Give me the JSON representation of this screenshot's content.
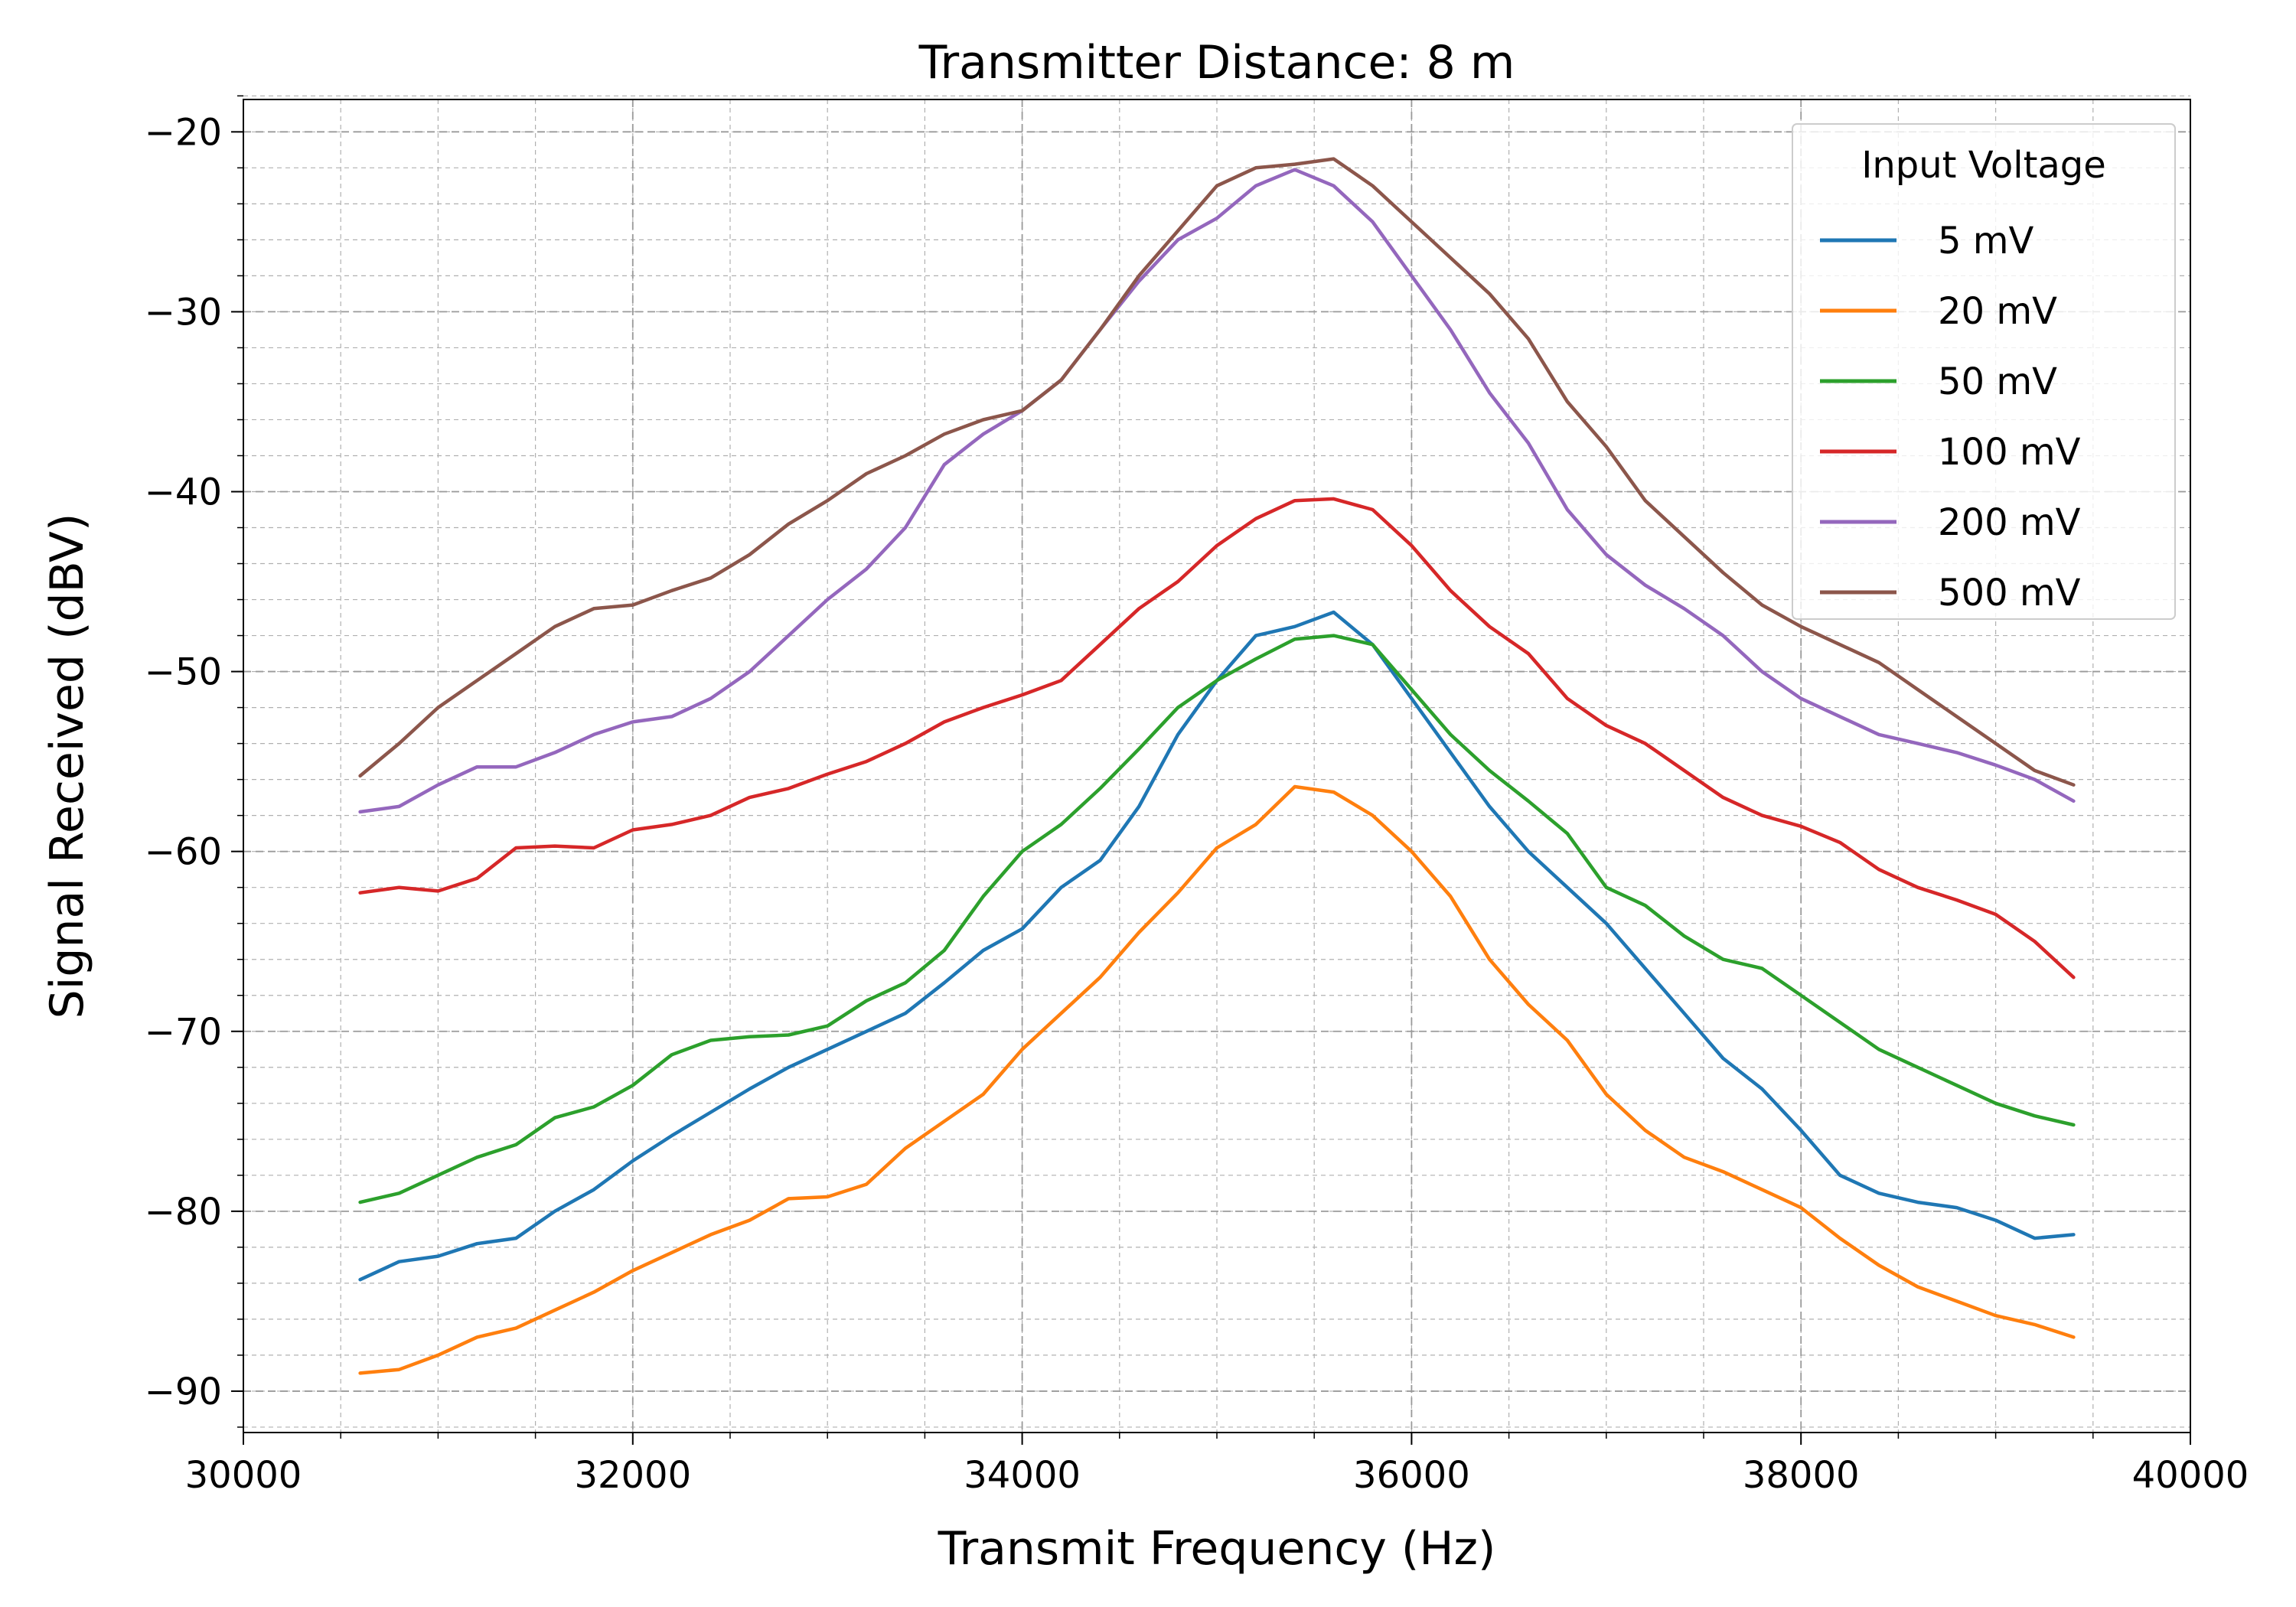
{
  "chart_data": {
    "type": "line",
    "title": "Transmitter Distance: 8 m",
    "xlabel": "Transmit Frequency (Hz)",
    "ylabel": "Signal Received (dBV)",
    "xlim": [
      30000,
      40000
    ],
    "ylim": [
      -92.3,
      -18.2
    ],
    "xticks": [
      30000,
      32000,
      34000,
      36000,
      38000,
      40000
    ],
    "xtick_labels": [
      "30000",
      "32000",
      "34000",
      "36000",
      "38000",
      "40000"
    ],
    "yticks": [
      -20,
      -30,
      -40,
      -50,
      -60,
      -70,
      -80,
      -90
    ],
    "ytick_labels": [
      "−20",
      "−30",
      "−40",
      "−50",
      "−60",
      "−70",
      "−80",
      "−90"
    ],
    "grid": true,
    "legend": {
      "title": "Input Voltage",
      "placement": "upper right"
    },
    "series": [
      {
        "name": "5 mV",
        "color": "#1f77b4",
        "x": [
          30600,
          30800,
          31000,
          31200,
          31400,
          31600,
          31800,
          32000,
          32200,
          32400,
          32600,
          32800,
          33000,
          33200,
          33400,
          33600,
          33800,
          34000,
          34200,
          34400,
          34600,
          34800,
          35000,
          35200,
          35400,
          35600,
          35800,
          36000,
          36200,
          36400,
          36600,
          36800,
          37000,
          37200,
          37400,
          37600,
          37800,
          38000,
          38200,
          38400,
          38600,
          38800,
          39000,
          39200,
          39400
        ],
        "y": [
          -83.8,
          -82.8,
          -82.5,
          -81.8,
          -81.5,
          -80,
          -78.8,
          -77.2,
          -75.8,
          -74.5,
          -73.2,
          -72,
          -71,
          -70,
          -69,
          -67.3,
          -65.5,
          -64.3,
          -62,
          -60.5,
          -57.5,
          -53.5,
          -50.5,
          -48,
          -47.5,
          -46.7,
          -48.5,
          -51.5,
          -54.5,
          -57.5,
          -60,
          -62,
          -64,
          -66.5,
          -69,
          -71.5,
          -73.2,
          -75.5,
          -78,
          -79,
          -79.5,
          -79.8,
          -80.5,
          -81.5,
          -81.3
        ]
      },
      {
        "name": "20 mV",
        "color": "#ff7f0e",
        "x": [
          30600,
          30800,
          31000,
          31200,
          31400,
          31600,
          31800,
          32000,
          32200,
          32400,
          32600,
          32800,
          33000,
          33200,
          33400,
          33600,
          33800,
          34000,
          34200,
          34400,
          34600,
          34800,
          35000,
          35200,
          35400,
          35600,
          35800,
          36000,
          36200,
          36400,
          36600,
          36800,
          37000,
          37200,
          37400,
          37600,
          37800,
          38000,
          38200,
          38400,
          38600,
          38800,
          39000,
          39200,
          39400
        ],
        "y": [
          -89,
          -88.8,
          -88,
          -87,
          -86.5,
          -85.5,
          -84.5,
          -83.3,
          -82.3,
          -81.3,
          -80.5,
          -79.3,
          -79.2,
          -78.5,
          -76.5,
          -75,
          -73.5,
          -71,
          -69,
          -67,
          -64.5,
          -62.3,
          -59.8,
          -58.5,
          -56.4,
          -56.7,
          -58,
          -60,
          -62.5,
          -66,
          -68.5,
          -70.5,
          -73.5,
          -75.5,
          -77,
          -77.8,
          -78.8,
          -79.8,
          -81.5,
          -83,
          -84.2,
          -85,
          -85.8,
          -86.3,
          -87
        ]
      },
      {
        "name": "50 mV",
        "color": "#2ca02c",
        "x": [
          30600,
          30800,
          31000,
          31200,
          31400,
          31600,
          31800,
          32000,
          32200,
          32400,
          32600,
          32800,
          33000,
          33200,
          33400,
          33600,
          33800,
          34000,
          34200,
          34400,
          34600,
          34800,
          35000,
          35200,
          35400,
          35600,
          35800,
          36000,
          36200,
          36400,
          36600,
          36800,
          37000,
          37200,
          37400,
          37600,
          37800,
          38000,
          38200,
          38400,
          38600,
          38800,
          39000,
          39200,
          39400
        ],
        "y": [
          -79.5,
          -79,
          -78,
          -77,
          -76.3,
          -74.8,
          -74.2,
          -73,
          -71.3,
          -70.5,
          -70.3,
          -70.2,
          -69.7,
          -68.3,
          -67.3,
          -65.5,
          -62.5,
          -60,
          -58.5,
          -56.5,
          -54.3,
          -52,
          -50.5,
          -49.3,
          -48.2,
          -48,
          -48.5,
          -51,
          -53.5,
          -55.5,
          -57.2,
          -59,
          -62,
          -63,
          -64.7,
          -66,
          -66.5,
          -68,
          -69.5,
          -71,
          -72,
          -73,
          -74,
          -74.7,
          -75.2
        ]
      },
      {
        "name": "100 mV",
        "color": "#d62728",
        "x": [
          30600,
          30800,
          31000,
          31200,
          31400,
          31600,
          31800,
          32000,
          32200,
          32400,
          32600,
          32800,
          33000,
          33200,
          33400,
          33600,
          33800,
          34000,
          34200,
          34400,
          34600,
          34800,
          35000,
          35200,
          35400,
          35600,
          35800,
          36000,
          36200,
          36400,
          36600,
          36800,
          37000,
          37200,
          37400,
          37600,
          37800,
          38000,
          38200,
          38400,
          38600,
          38800,
          39000,
          39200,
          39400
        ],
        "y": [
          -62.3,
          -62,
          -62.2,
          -61.5,
          -59.8,
          -59.7,
          -59.8,
          -58.8,
          -58.5,
          -58,
          -57,
          -56.5,
          -55.7,
          -55,
          -54,
          -52.8,
          -52,
          -51.3,
          -50.5,
          -48.5,
          -46.5,
          -45,
          -43,
          -41.5,
          -40.5,
          -40.4,
          -41,
          -43,
          -45.5,
          -47.5,
          -49,
          -51.5,
          -53,
          -54,
          -55.5,
          -57,
          -58,
          -58.6,
          -59.5,
          -61,
          -62,
          -62.7,
          -63.5,
          -65,
          -67
        ]
      },
      {
        "name": "200 mV",
        "color": "#9467bd",
        "x": [
          30600,
          30800,
          31000,
          31200,
          31400,
          31600,
          31800,
          32000,
          32200,
          32400,
          32600,
          32800,
          33000,
          33200,
          33400,
          33600,
          33800,
          34000,
          34200,
          34400,
          34600,
          34800,
          35000,
          35200,
          35400,
          35600,
          35800,
          36000,
          36200,
          36400,
          36600,
          36800,
          37000,
          37200,
          37400,
          37600,
          37800,
          38000,
          38200,
          38400,
          38600,
          38800,
          39000,
          39200,
          39400
        ],
        "y": [
          -57.8,
          -57.5,
          -56.3,
          -55.3,
          -55.3,
          -54.5,
          -53.5,
          -52.8,
          -52.5,
          -51.5,
          -50,
          -48,
          -46,
          -44.3,
          -42,
          -38.5,
          -36.8,
          -35.5,
          -33.8,
          -31,
          -28.3,
          -26,
          -24.8,
          -23,
          -22.1,
          -23,
          -25,
          -28,
          -31,
          -34.5,
          -37.3,
          -41,
          -43.5,
          -45.2,
          -46.5,
          -48,
          -50,
          -51.5,
          -52.5,
          -53.5,
          -54,
          -54.5,
          -55.2,
          -56,
          -57.2
        ]
      },
      {
        "name": "500 mV",
        "color": "#8c564b",
        "x": [
          30600,
          30800,
          31000,
          31200,
          31400,
          31600,
          31800,
          32000,
          32200,
          32400,
          32600,
          32800,
          33000,
          33200,
          33400,
          33600,
          33800,
          34000,
          34200,
          34400,
          34600,
          34800,
          35000,
          35200,
          35400,
          35600,
          35800,
          36000,
          36200,
          36400,
          36600,
          36800,
          37000,
          37200,
          37400,
          37600,
          37800,
          38000,
          38200,
          38400,
          38600,
          38800,
          39000,
          39200,
          39400
        ],
        "y": [
          -55.8,
          -54,
          -52,
          -50.5,
          -49,
          -47.5,
          -46.5,
          -46.3,
          -45.5,
          -44.8,
          -43.5,
          -41.8,
          -40.5,
          -39,
          -38,
          -36.8,
          -36,
          -35.5,
          -33.8,
          -31,
          -28,
          -25.5,
          -23,
          -22,
          -21.8,
          -21.5,
          -23,
          -25,
          -27,
          -29,
          -31.5,
          -35,
          -37.5,
          -40.5,
          -42.5,
          -44.5,
          -46.3,
          -47.5,
          -48.5,
          -49.5,
          -51,
          -52.5,
          -54,
          -55.5,
          -56.3
        ]
      }
    ]
  }
}
